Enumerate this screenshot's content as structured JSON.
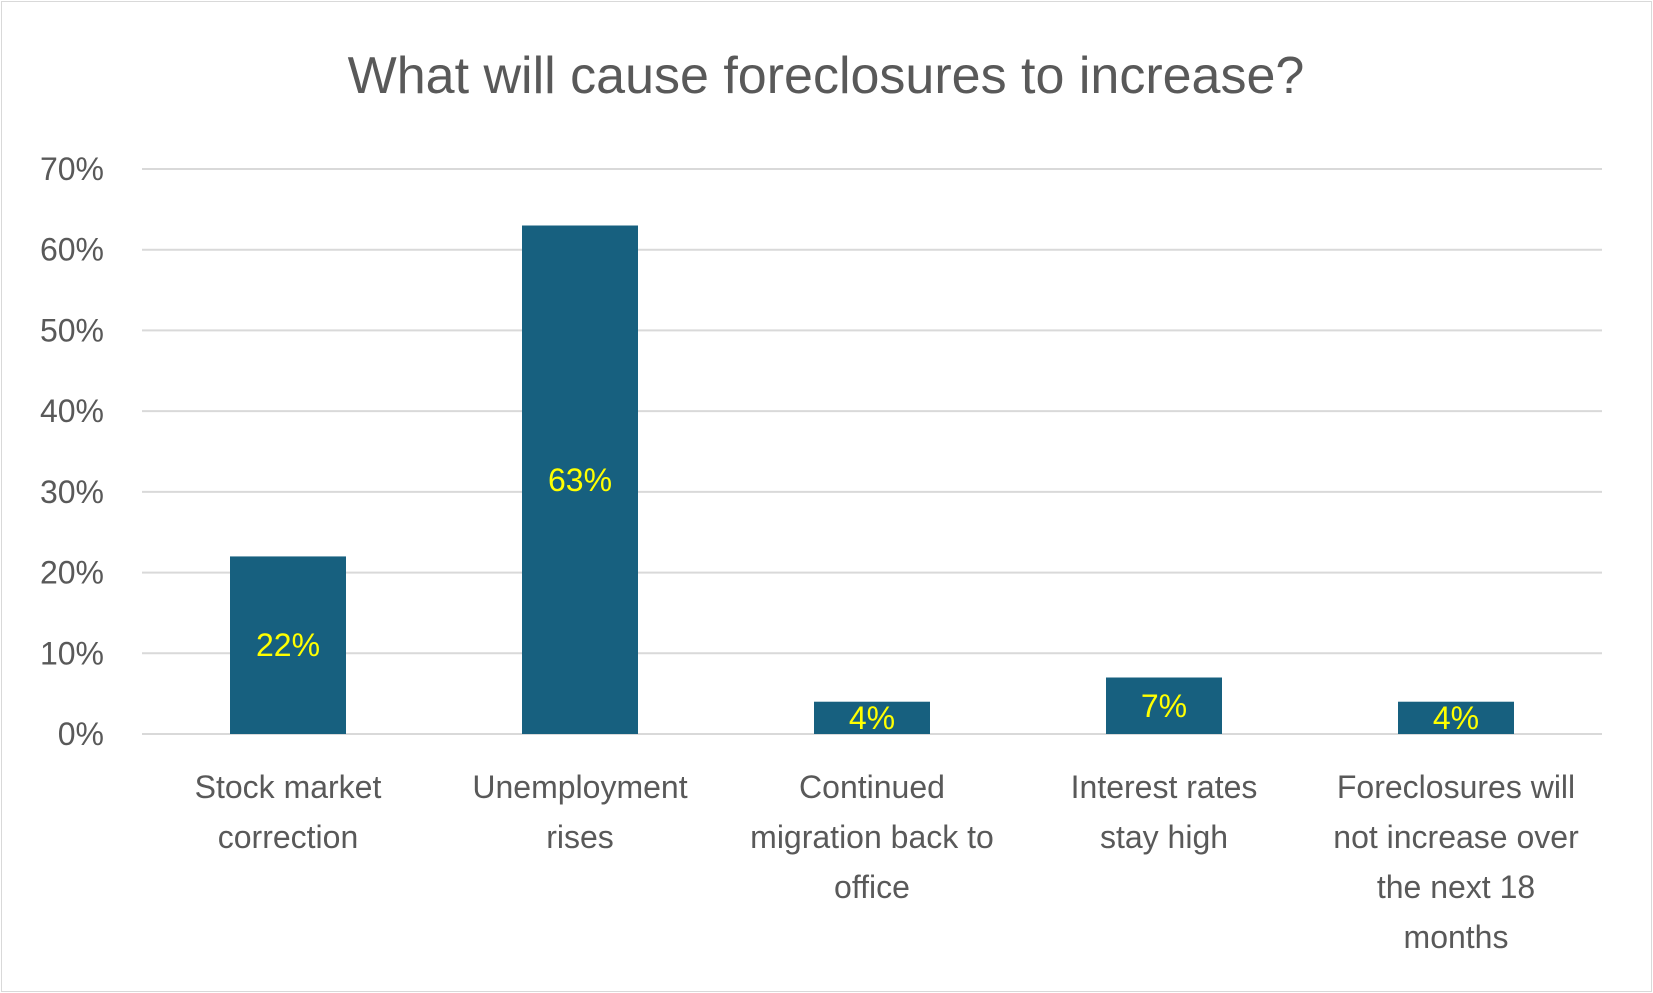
{
  "chart_data": {
    "type": "bar",
    "title": "What will cause foreclosures to increase?",
    "categories": [
      [
        "Stock market",
        "correction"
      ],
      [
        "Unemployment",
        "rises"
      ],
      [
        "Continued",
        "migration back to",
        "office"
      ],
      [
        "Interest rates",
        "stay high"
      ],
      [
        "Foreclosures will",
        "not increase over",
        "the next 18",
        "months"
      ]
    ],
    "values": [
      22,
      63,
      4,
      7,
      4
    ],
    "data_labels": [
      "22%",
      "63%",
      "4%",
      "7%",
      "4%"
    ],
    "y_ticks": [
      "0%",
      "10%",
      "20%",
      "30%",
      "40%",
      "50%",
      "60%",
      "70%"
    ],
    "ylim": [
      0,
      70
    ],
    "grid": true,
    "legend": "none",
    "bar_color": "#17607f",
    "label_color": "#ffff00",
    "grid_color": "#d9d9d9"
  }
}
